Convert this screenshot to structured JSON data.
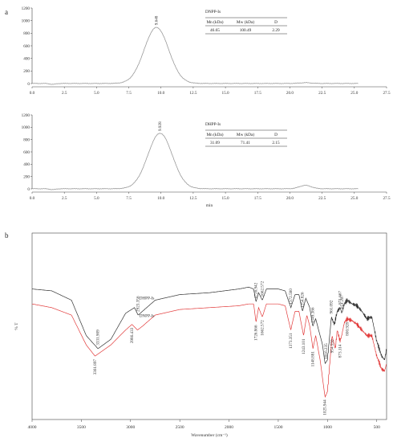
{
  "chart_data": [
    {
      "type": "line",
      "panel": "a",
      "sample": "DNPP-Is",
      "series": [
        {
          "name": "DNPP-Is",
          "color": "#9a9a9a"
        }
      ],
      "peaks": [
        {
          "x": 9.648,
          "y": 890,
          "label": "9.648"
        },
        {
          "x": 21.2,
          "y": 12,
          "label": ""
        }
      ],
      "baseline": 2,
      "xlim": [
        0.0,
        27.5
      ],
      "ylim": [
        0,
        1200
      ],
      "x_ticks": [
        "0.0",
        "2.5",
        "5.0",
        "7.5",
        "10.0",
        "12.5",
        "15.0",
        "17.5",
        "20.0",
        "22.5",
        "25.0",
        "27.5"
      ],
      "y_ticks": [
        "0",
        "200",
        "400",
        "600",
        "800",
        "1000",
        "1200"
      ],
      "table": {
        "title": "DNPP-Is",
        "headers": [
          "Mn (kDa)",
          "Mw (kDa)",
          "D"
        ],
        "row": [
          "46.65",
          "100.49",
          "2.29"
        ]
      }
    },
    {
      "type": "line",
      "panel": "a",
      "sample": "DHPP-Is",
      "series": [
        {
          "name": "DHPP-Is",
          "color": "#9a9a9a"
        }
      ],
      "peaks": [
        {
          "x": 9.928,
          "y": 900,
          "label": "9.928"
        },
        {
          "x": 21.2,
          "y": 55,
          "label": ""
        }
      ],
      "baseline": 2,
      "xlim": [
        0.0,
        27.5
      ],
      "ylim": [
        0,
        1200
      ],
      "x_ticks": [
        "0.0",
        "2.5",
        "5.0",
        "7.5",
        "10.0",
        "12.5",
        "15.0",
        "17.5",
        "20.0",
        "22.5",
        "25.0",
        "27.5"
      ],
      "y_ticks": [
        "0",
        "200",
        "400",
        "600",
        "800",
        "1000",
        "1200"
      ],
      "xlabel": "min",
      "table": {
        "title": "DHPP-Is",
        "headers": [
          "Mn (kDa)",
          "Mw (kDa)",
          "D"
        ],
        "row": [
          "31.09",
          "71.41",
          "2.15"
        ]
      }
    },
    {
      "type": "line",
      "panel": "b",
      "xlabel": "Wavenumber (cm⁻¹)",
      "ylabel": "% T",
      "xlim": [
        4000,
        400
      ],
      "x_ticks": [
        "4000",
        "3500",
        "3000",
        "2500",
        "2000",
        "1500",
        "1000",
        "500"
      ],
      "series": [
        {
          "name": "DHPP-Is",
          "color": "#333333",
          "points": [
            [
              4000,
              0.3
            ],
            [
              3800,
              0.31
            ],
            [
              3600,
              0.36
            ],
            [
              3450,
              0.55
            ],
            [
              3331,
              0.62
            ],
            [
              3200,
              0.57
            ],
            [
              3050,
              0.43
            ],
            [
              2960,
              0.4
            ],
            [
              2923,
              0.44
            ],
            [
              2880,
              0.42
            ],
            [
              2750,
              0.36
            ],
            [
              2500,
              0.33
            ],
            [
              2200,
              0.32
            ],
            [
              1900,
              0.3
            ],
            [
              1800,
              0.29
            ],
            [
              1750,
              0.3
            ],
            [
              1726,
              0.37
            ],
            [
              1700,
              0.32
            ],
            [
              1662,
              0.36
            ],
            [
              1620,
              0.3
            ],
            [
              1500,
              0.3
            ],
            [
              1430,
              0.31
            ],
            [
              1372,
              0.4
            ],
            [
              1330,
              0.33
            ],
            [
              1290,
              0.33
            ],
            [
              1254,
              0.42
            ],
            [
              1220,
              0.35
            ],
            [
              1180,
              0.4
            ],
            [
              1150,
              0.5
            ],
            [
              1120,
              0.46
            ],
            [
              1075,
              0.55
            ],
            [
              1050,
              0.6
            ],
            [
              1025,
              0.7
            ],
            [
              1000,
              0.68
            ],
            [
              961,
              0.45
            ],
            [
              931,
              0.49
            ],
            [
              900,
              0.42
            ],
            [
              871,
              0.4
            ],
            [
              855,
              0.43
            ],
            [
              830,
              0.38
            ],
            [
              800,
              0.36
            ],
            [
              750,
              0.38
            ],
            [
              700,
              0.39
            ],
            [
              650,
              0.42
            ],
            [
              600,
              0.46
            ],
            [
              550,
              0.45
            ],
            [
              500,
              0.58
            ],
            [
              450,
              0.66
            ],
            [
              420,
              0.68
            ],
            [
              400,
              0.62
            ]
          ],
          "labels": [
            {
              "x": 3331.909,
              "text": "3331.909"
            },
            {
              "x": 2923.356,
              "text": "2923.356"
            },
            {
              "x": 1726.942,
              "text": "1726.942"
            },
            {
              "x": 1662.572,
              "text": "1662.572"
            },
            {
              "x": 1372.58,
              "text": "1372.580"
            },
            {
              "x": 1254.826,
              "text": "1254.826"
            },
            {
              "x": 1149.386,
              "text": "1149.386"
            },
            {
              "x": 1016.235,
              "text": "1016.235"
            },
            {
              "x": 961.092,
              "text": "961.092"
            },
            {
              "x": 871.667,
              "text": "871.667"
            },
            {
              "x": 851.207,
              "text": "851.207"
            }
          ]
        },
        {
          "name": "DNPP-Is",
          "color": "#e23b3b",
          "points": [
            [
              4000,
              0.38
            ],
            [
              3800,
              0.4
            ],
            [
              3600,
              0.44
            ],
            [
              3450,
              0.6
            ],
            [
              3361,
              0.66
            ],
            [
              3200,
              0.6
            ],
            [
              3050,
              0.52
            ],
            [
              2986,
              0.49
            ],
            [
              2930,
              0.52
            ],
            [
              2880,
              0.5
            ],
            [
              2750,
              0.44
            ],
            [
              2500,
              0.41
            ],
            [
              2200,
              0.4
            ],
            [
              1900,
              0.39
            ],
            [
              1800,
              0.38
            ],
            [
              1750,
              0.38
            ],
            [
              1726,
              0.48
            ],
            [
              1700,
              0.4
            ],
            [
              1662,
              0.45
            ],
            [
              1620,
              0.38
            ],
            [
              1500,
              0.38
            ],
            [
              1430,
              0.39
            ],
            [
              1373,
              0.52
            ],
            [
              1330,
              0.42
            ],
            [
              1290,
              0.42
            ],
            [
              1243,
              0.55
            ],
            [
              1210,
              0.44
            ],
            [
              1180,
              0.5
            ],
            [
              1148,
              0.62
            ],
            [
              1120,
              0.55
            ],
            [
              1075,
              0.68
            ],
            [
              1050,
              0.78
            ],
            [
              1025,
              0.88
            ],
            [
              1000,
              0.85
            ],
            [
              954,
              0.55
            ],
            [
              920,
              0.62
            ],
            [
              900,
              0.52
            ],
            [
              873,
              0.58
            ],
            [
              855,
              0.55
            ],
            [
              830,
              0.48
            ],
            [
              800,
              0.46
            ],
            [
              750,
              0.47
            ],
            [
              700,
              0.49
            ],
            [
              650,
              0.52
            ],
            [
              600,
              0.55
            ],
            [
              550,
              0.55
            ],
            [
              500,
              0.66
            ],
            [
              450,
              0.73
            ],
            [
              420,
              0.74
            ],
            [
              400,
              0.7
            ]
          ],
          "labels": [
            {
              "x": 3361.897,
              "text": "3361.897"
            },
            {
              "x": 2986.433,
              "text": "2986.433"
            },
            {
              "x": 1726.866,
              "text": "1726.866"
            },
            {
              "x": 1662.572,
              "text": "1662.572"
            },
            {
              "x": 1373.351,
              "text": "1373.351"
            },
            {
              "x": 1243.101,
              "text": "1243.101"
            },
            {
              "x": 1148.881,
              "text": "1148.881"
            },
            {
              "x": 1025.944,
              "text": "1025.944"
            },
            {
              "x": 954.55,
              "text": "954.550"
            },
            {
              "x": 873.114,
              "text": "873.114"
            },
            {
              "x": 800.928,
              "text": "800.928"
            }
          ]
        }
      ]
    }
  ],
  "panels": {
    "a": "a",
    "b": "b"
  }
}
